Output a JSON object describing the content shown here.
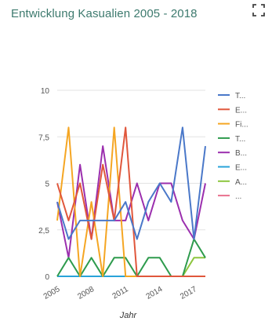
{
  "widget": {
    "title": "Entwicklung Kasualien 2005 - 2018",
    "expand_icon": "expand-icon"
  },
  "chart_data": {
    "type": "line",
    "title": "Entwicklung Kasualien 2005 - 2018",
    "xlabel": "Jahr",
    "ylabel": "",
    "x": [
      2005,
      2006,
      2007,
      2008,
      2009,
      2010,
      2011,
      2012,
      2013,
      2014,
      2015,
      2016,
      2017,
      2018
    ],
    "x_tick_labels": [
      "2005",
      "2008",
      "2011",
      "2014",
      "2017"
    ],
    "x_tick_values": [
      2005,
      2008,
      2011,
      2014,
      2017
    ],
    "y_tick_labels": [
      "0",
      "2,5",
      "5",
      "7,5",
      "10"
    ],
    "y_tick_values": [
      0,
      2.5,
      5,
      7.5,
      10
    ],
    "ylim": [
      0,
      10
    ],
    "grid": true,
    "legend_position": "right",
    "series": [
      {
        "name": "T...",
        "color": "#4a78c9",
        "values": [
          4,
          2,
          3,
          3,
          3,
          3,
          4,
          2,
          4,
          5,
          4,
          8,
          2,
          7
        ]
      },
      {
        "name": "E...",
        "color": "#e0573c",
        "values": [
          5,
          3,
          5,
          2,
          6,
          3,
          8,
          0,
          0,
          0,
          0,
          0,
          0,
          0
        ]
      },
      {
        "name": "Fi...",
        "color": "#f5a623",
        "values": [
          3,
          8,
          0,
          4,
          0,
          8,
          0,
          0,
          0,
          0,
          0,
          0,
          0,
          0
        ]
      },
      {
        "name": "T...",
        "color": "#2e9b4d",
        "values": [
          0,
          1,
          0,
          1,
          0,
          1,
          1,
          0,
          1,
          1,
          0,
          0,
          2,
          1
        ]
      },
      {
        "name": "B...",
        "color": "#9b2fae",
        "values": [
          4,
          1,
          6,
          2,
          7,
          3,
          3,
          5,
          3,
          5,
          5,
          3,
          2,
          5
        ]
      },
      {
        "name": "E...",
        "color": "#29a3d9",
        "values": [
          0,
          0,
          0,
          0,
          0,
          0,
          0,
          0,
          0,
          0,
          0,
          0,
          0,
          0
        ]
      },
      {
        "name": "A...",
        "color": "#8dc63f",
        "values": [
          0,
          0,
          0,
          0,
          0,
          0,
          0,
          0,
          0,
          0,
          0,
          0,
          1,
          1
        ]
      },
      {
        "name": "...",
        "color": "#e9718e",
        "values": [
          0,
          0,
          0,
          0,
          0,
          0,
          0,
          0,
          0,
          0,
          0,
          0,
          0,
          0
        ]
      }
    ]
  }
}
